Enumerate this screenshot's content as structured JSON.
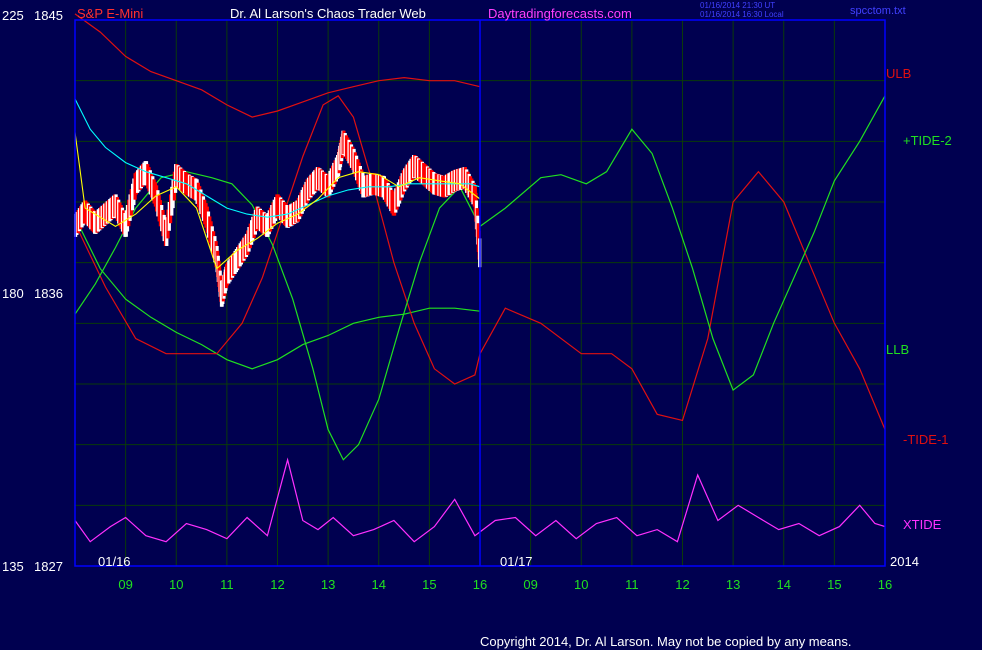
{
  "header": {
    "instrument": "S&P E-Mini",
    "title": "Dr. Al Larson's Chaos Trader Web",
    "site": "Daytradingforecasts.com",
    "stamp_line1": "01/16/2014 21:30 UT",
    "stamp_line2": "01/16/2014 16:30 Local",
    "file": "spcctom.txt"
  },
  "footer": {
    "copyright": "Copyright 2014, Dr. Al Larson. May not be copied by any means."
  },
  "colors": {
    "background": "#000050",
    "frame": "#0000ff",
    "grid": "#0a3a0a",
    "price_up": "#ffffff",
    "price_down": "#ff0000",
    "ulb": "#e01010",
    "llb": "#20e020",
    "tide1": "#e01010",
    "tide2": "#20e020",
    "xtide": "#ff30ff",
    "ma_fast": "#ffff00",
    "ma_slow": "#00ffff",
    "axis_text": "#20e020",
    "header_red": "#ff3030",
    "header_white": "#ffffff",
    "header_magenta": "#ff40ff",
    "stamp_blue": "#4040ff"
  },
  "chart_data": {
    "type": "line",
    "y_axis_left": {
      "ticks": [
        {
          "osc": "225",
          "price": "1845",
          "value": 1845
        },
        {
          "osc": "180",
          "price": "1836",
          "value": 1836
        },
        {
          "osc": "135",
          "price": "1827",
          "value": 1827
        }
      ],
      "ylim": [
        1827,
        1845
      ]
    },
    "x_axis": {
      "hours": [
        "09",
        "10",
        "11",
        "12",
        "13",
        "14",
        "15",
        "16",
        "09",
        "10",
        "11",
        "12",
        "13",
        "14",
        "15",
        "16"
      ],
      "date_labels": [
        "01/16",
        "01/17",
        "2014"
      ]
    },
    "grid": true,
    "series_labels": [
      {
        "name": "ULB",
        "color": "#e01010"
      },
      {
        "name": "+TIDE-2",
        "color": "#20e020"
      },
      {
        "name": "LLB",
        "color": "#20e020"
      },
      {
        "name": "-TIDE-1",
        "color": "#e01010"
      },
      {
        "name": "XTIDE",
        "color": "#ff30ff"
      }
    ],
    "series": [
      {
        "key": "ulb",
        "x": [
          8.0,
          8.5,
          9.0,
          9.5,
          10.0,
          10.5,
          11.0,
          11.5,
          12.0,
          12.5,
          13.0,
          13.5,
          14.0,
          14.5,
          15.0,
          15.5,
          16.0
        ],
        "y": [
          1845.2,
          1844.6,
          1843.8,
          1843.3,
          1843.0,
          1842.7,
          1842.2,
          1841.8,
          1842.0,
          1842.3,
          1842.6,
          1842.8,
          1843.0,
          1843.1,
          1843.0,
          1843.0,
          1842.8
        ]
      },
      {
        "key": "llb",
        "x": [
          8.0,
          8.5,
          9.0,
          9.5,
          10.0,
          10.5,
          11.0,
          11.5,
          12.0,
          12.5,
          13.0,
          13.5,
          14.0,
          14.5,
          15.0,
          15.5,
          16.0
        ],
        "y": [
          1838.5,
          1836.8,
          1835.8,
          1835.2,
          1834.7,
          1834.3,
          1833.8,
          1833.5,
          1833.8,
          1834.3,
          1834.6,
          1835.0,
          1835.2,
          1835.3,
          1835.5,
          1835.5,
          1835.4
        ]
      },
      {
        "key": "tide1",
        "x": [
          8.0,
          8.6,
          9.2,
          9.8,
          10.3,
          10.8,
          11.3,
          11.7,
          12.1,
          12.5,
          12.9,
          13.2,
          13.5,
          13.9,
          14.3,
          14.7,
          15.1,
          15.5,
          15.9,
          16.0,
          16.5,
          17.2,
          18.0,
          18.6,
          19.0,
          19.5,
          20.0,
          20.5,
          21.0,
          21.5,
          22.0,
          22.5,
          23.0,
          23.5,
          24.0
        ],
        "y": [
          1838.3,
          1836.2,
          1834.5,
          1834.0,
          1834.0,
          1834.0,
          1835.0,
          1836.5,
          1838.5,
          1840.5,
          1842.2,
          1842.5,
          1841.8,
          1839.5,
          1837.0,
          1835.0,
          1833.5,
          1833.0,
          1833.3,
          1834.0,
          1835.5,
          1835.0,
          1834.0,
          1834.0,
          1833.5,
          1832.0,
          1831.8,
          1834.5,
          1839.0,
          1840.0,
          1839.0,
          1837.0,
          1835.0,
          1833.5,
          1831.5
        ]
      },
      {
        "key": "tide2",
        "x": [
          8.0,
          8.4,
          8.8,
          9.2,
          9.7,
          10.2,
          10.7,
          11.1,
          11.5,
          11.9,
          12.3,
          12.7,
          13.0,
          13.3,
          13.6,
          14.0,
          14.4,
          14.8,
          15.2,
          15.6,
          16.0,
          16.5,
          17.2,
          17.6,
          18.1,
          18.5,
          19.0,
          19.4,
          19.8,
          20.2,
          20.6,
          21.0,
          21.4,
          21.8,
          22.2,
          22.6,
          23.0,
          23.5,
          24.0
        ],
        "y": [
          1835.3,
          1836.3,
          1837.5,
          1838.8,
          1839.8,
          1840.0,
          1839.8,
          1839.6,
          1838.9,
          1837.6,
          1835.8,
          1833.5,
          1831.5,
          1830.5,
          1831.0,
          1832.5,
          1834.8,
          1837.0,
          1838.8,
          1839.5,
          1838.2,
          1838.8,
          1839.8,
          1839.9,
          1839.6,
          1840.0,
          1841.4,
          1840.6,
          1838.8,
          1836.8,
          1834.5,
          1832.8,
          1833.3,
          1835.0,
          1836.5,
          1838.0,
          1839.7,
          1841.0,
          1842.5
        ]
      },
      {
        "key": "xtide",
        "x": [
          8.0,
          8.3,
          8.7,
          9.0,
          9.4,
          9.8,
          10.2,
          10.6,
          11.0,
          11.4,
          11.8,
          12.2,
          12.5,
          12.8,
          13.1,
          13.5,
          13.9,
          14.3,
          14.7,
          15.1,
          15.5,
          15.9,
          16.3,
          16.7,
          17.1,
          17.5,
          17.9,
          18.3,
          18.7,
          19.1,
          19.5,
          19.9,
          20.3,
          20.7,
          21.1,
          21.5,
          21.9,
          22.3,
          22.7,
          23.1,
          23.5,
          23.8,
          24.0
        ],
        "y": [
          1828.5,
          1827.8,
          1828.3,
          1828.6,
          1828.0,
          1827.8,
          1828.4,
          1828.2,
          1827.9,
          1828.6,
          1828.0,
          1830.5,
          1828.5,
          1828.2,
          1828.6,
          1828.0,
          1828.2,
          1828.5,
          1827.8,
          1828.3,
          1829.2,
          1828.0,
          1828.5,
          1828.6,
          1828.0,
          1828.5,
          1827.9,
          1828.4,
          1828.6,
          1828.0,
          1828.2,
          1827.8,
          1830.0,
          1828.5,
          1829.0,
          1828.6,
          1828.2,
          1828.4,
          1828.0,
          1828.3,
          1829.0,
          1828.4,
          1828.3
        ]
      },
      {
        "key": "ma_fast",
        "x": [
          8.0,
          8.2,
          8.5,
          8.8,
          9.2,
          9.6,
          10.0,
          10.4,
          10.8,
          11.2,
          11.6,
          12.0,
          12.4,
          12.8,
          13.2,
          13.6,
          14.0,
          14.4,
          14.8,
          15.2,
          15.6,
          16.0
        ],
        "y": [
          1841.3,
          1838.8,
          1838.5,
          1838.2,
          1838.6,
          1839.2,
          1839.5,
          1838.8,
          1836.8,
          1837.4,
          1837.8,
          1838.3,
          1838.6,
          1839.1,
          1839.8,
          1840.0,
          1839.9,
          1839.5,
          1839.8,
          1839.7,
          1839.6,
          1839.1
        ]
      },
      {
        "key": "ma_slow",
        "x": [
          8.0,
          8.3,
          8.6,
          9.0,
          9.4,
          9.8,
          10.2,
          10.6,
          11.0,
          11.4,
          11.8,
          12.2,
          12.6,
          13.0,
          13.4,
          13.8,
          14.2,
          14.6,
          15.0,
          15.4,
          15.8,
          16.0
        ],
        "y": [
          1842.4,
          1841.4,
          1840.8,
          1840.3,
          1840.0,
          1839.8,
          1839.6,
          1839.2,
          1838.8,
          1838.6,
          1838.5,
          1838.6,
          1838.9,
          1839.2,
          1839.4,
          1839.5,
          1839.5,
          1839.6,
          1839.6,
          1839.6,
          1839.6,
          1839.5
        ]
      },
      {
        "key": "price",
        "x": [
          8.0,
          8.2,
          8.4,
          8.6,
          8.8,
          9.0,
          9.2,
          9.4,
          9.6,
          9.8,
          10.0,
          10.2,
          10.4,
          10.6,
          10.8,
          10.9,
          11.0,
          11.2,
          11.4,
          11.6,
          11.8,
          12.0,
          12.2,
          12.4,
          12.6,
          12.8,
          13.0,
          13.2,
          13.3,
          13.5,
          13.7,
          13.9,
          14.1,
          14.3,
          14.5,
          14.7,
          14.9,
          15.1,
          15.3,
          15.5,
          15.7,
          15.9,
          16.0
        ],
        "y": [
          1838.2,
          1838.7,
          1838.3,
          1838.6,
          1838.9,
          1838.2,
          1839.6,
          1840.0,
          1839.2,
          1837.9,
          1839.9,
          1839.6,
          1839.4,
          1838.5,
          1837.2,
          1835.9,
          1836.6,
          1837.1,
          1837.6,
          1838.5,
          1838.2,
          1838.9,
          1838.5,
          1838.7,
          1839.4,
          1839.8,
          1839.5,
          1840.2,
          1841.0,
          1840.4,
          1839.5,
          1839.6,
          1839.5,
          1838.9,
          1839.7,
          1840.2,
          1839.9,
          1839.6,
          1839.5,
          1839.7,
          1839.8,
          1839.2,
          1837.2
        ]
      }
    ]
  }
}
